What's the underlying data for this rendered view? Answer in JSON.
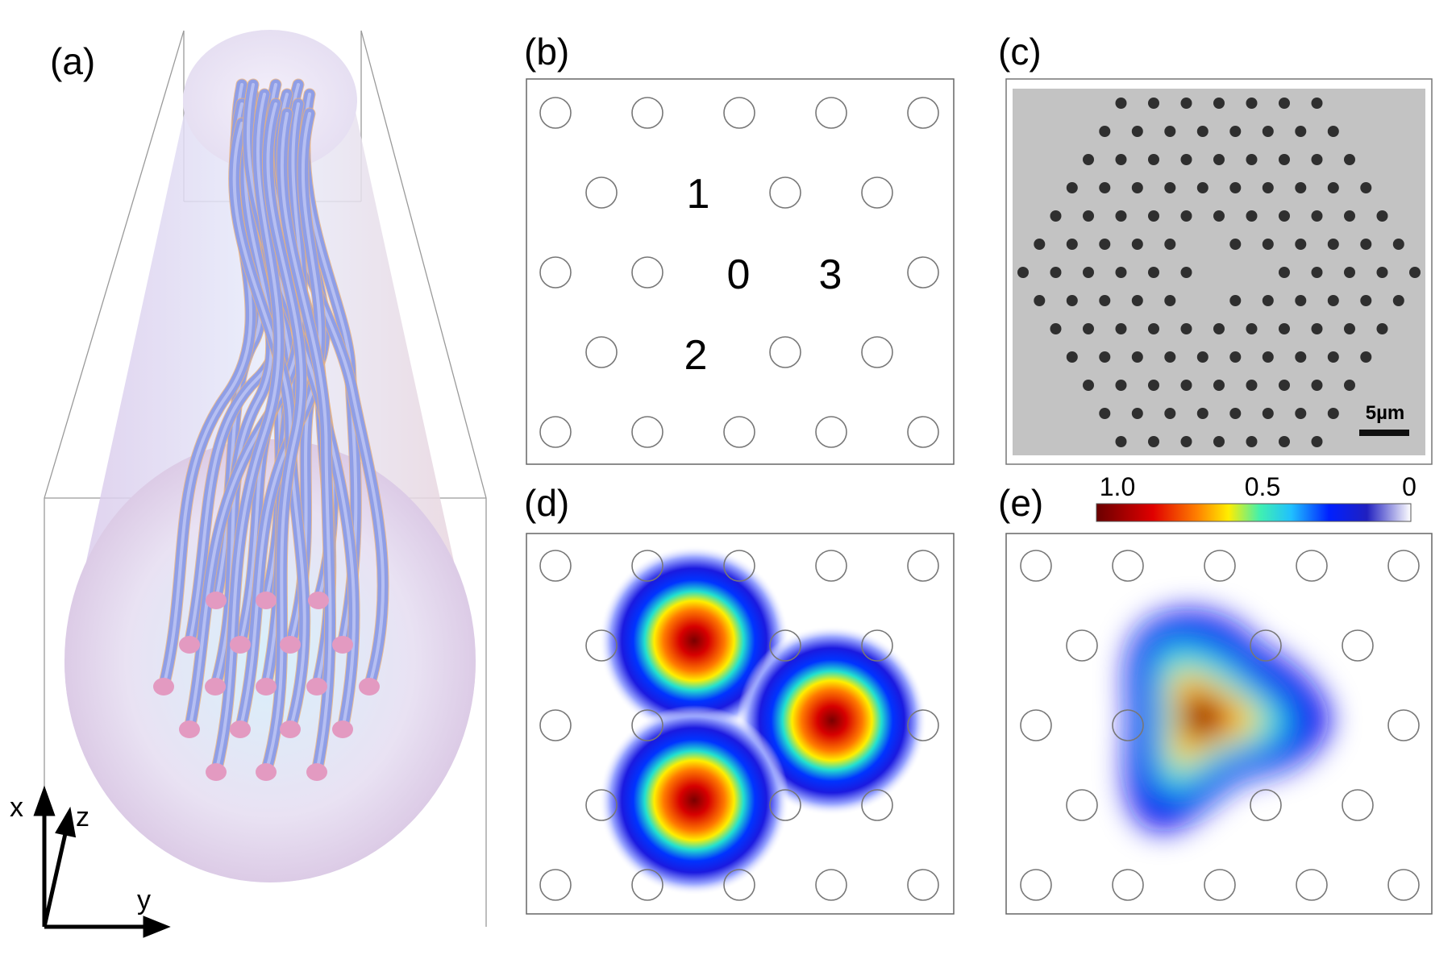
{
  "panels": {
    "a": {
      "label": "(a)",
      "axes": {
        "x": "x",
        "y": "y",
        "z": "z"
      }
    },
    "b": {
      "label": "(b)",
      "core_labels": [
        "1",
        "0",
        "3",
        "2"
      ]
    },
    "c": {
      "label": "(c)",
      "scale_bar": "5µm"
    },
    "d": {
      "label": "(d)"
    },
    "e": {
      "label": "(e)",
      "colorbar": {
        "max": "1.0",
        "mid": "0.5",
        "min": "0"
      }
    }
  },
  "colors": {
    "tube": "#8f9ee6",
    "tube_end": "#e39ac1",
    "hole": "#2f2f2f",
    "sem_background": "#c4c4c4",
    "frame": "#555555"
  }
}
